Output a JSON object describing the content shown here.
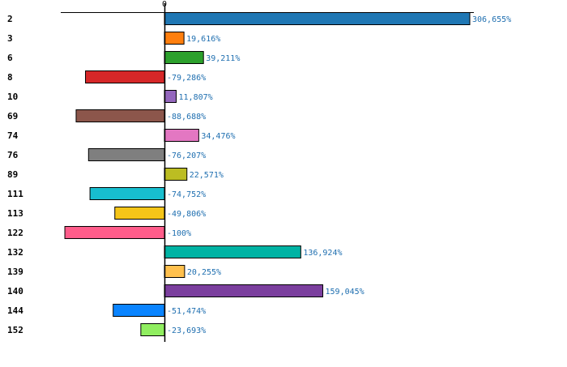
{
  "chart_data": {
    "type": "bar",
    "orientation": "horizontal",
    "title": "",
    "xlabel": "",
    "ylabel": "",
    "xlim": [
      -100,
      306.655
    ],
    "x_ticks": [
      "0"
    ],
    "grid": false,
    "legend": "none",
    "categories": [
      "2",
      "3",
      "6",
      "8",
      "10",
      "69",
      "74",
      "76",
      "89",
      "111",
      "113",
      "122",
      "132",
      "139",
      "140",
      "144",
      "152"
    ],
    "values": [
      306.655,
      19.616,
      39.211,
      -79.286,
      11.807,
      -88.688,
      34.476,
      -76.207,
      22.571,
      -74.752,
      -49.806,
      -100,
      136.924,
      20.255,
      159.045,
      -51.474,
      -23.693
    ],
    "value_labels": [
      "306,655%",
      "19,616%",
      "39,211%",
      "-79,286%",
      "11,807%",
      "-88,688%",
      "34,476%",
      "-76,207%",
      "22,571%",
      "-74,752%",
      "-49,806%",
      "-100%",
      "136,924%",
      "20,255%",
      "159,045%",
      "-51,474%",
      "-23,693%"
    ],
    "colors": [
      "#1f77b4",
      "#ff7f0e",
      "#2ca02c",
      "#d62728",
      "#9467bd",
      "#8c564b",
      "#e377c2",
      "#7f7f7f",
      "#bcbd22",
      "#17becf",
      "#f5c518",
      "#ff5c8a",
      "#00b3a4",
      "#ffc04d",
      "#7b3f9e",
      "#0a84ff",
      "#90ee60"
    ],
    "value_label_color": "#1f6fb0"
  }
}
